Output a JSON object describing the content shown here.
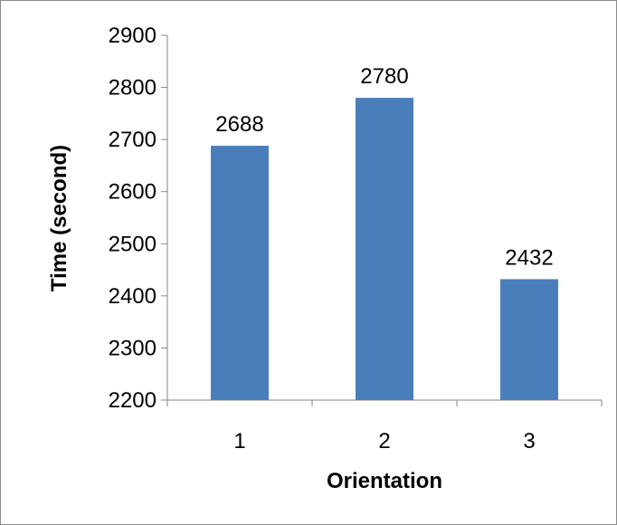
{
  "chart_data": {
    "type": "bar",
    "categories": [
      "1",
      "2",
      "3"
    ],
    "values": [
      2688,
      2780,
      2432
    ],
    "data_labels": [
      "2688",
      "2780",
      "2432"
    ],
    "title": "",
    "xlabel": "Orientation",
    "ylabel": "Time (second)",
    "ylim": [
      2200,
      2900
    ],
    "yticks": [
      "2200",
      "2300",
      "2400",
      "2500",
      "2600",
      "2700",
      "2800",
      "2900"
    ],
    "grid": false,
    "legend": "none",
    "bar_color": "#4a7ebb",
    "axis_color": "#868686"
  }
}
